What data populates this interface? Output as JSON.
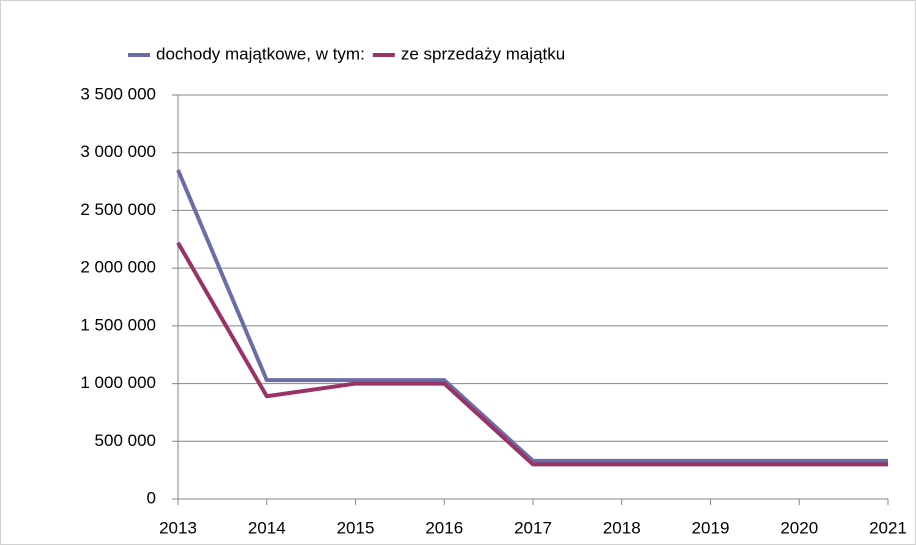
{
  "chart_data": {
    "type": "line",
    "x": [
      2013,
      2014,
      2015,
      2016,
      2017,
      2018,
      2019,
      2020,
      2021
    ],
    "xlim": [
      2013,
      2021
    ],
    "xticks": [
      2013,
      2014,
      2015,
      2016,
      2017,
      2018,
      2019,
      2020,
      2021
    ],
    "ylim": [
      0,
      3500000
    ],
    "yticks": [
      0,
      {
        "value": 500000,
        "label": "500 000"
      },
      {
        "value": 1000000,
        "label": "1 000 000"
      },
      {
        "value": 1500000,
        "label": "1 500 000"
      },
      {
        "value": 2000000,
        "label": "2 000 000"
      },
      {
        "value": 2500000,
        "label": "2 500 000"
      },
      {
        "value": 3000000,
        "label": "3 000 000"
      },
      {
        "value": 3500000,
        "label": "3 500 000"
      }
    ],
    "grid": true,
    "legend": "top",
    "series": [
      {
        "name": "dochody majątkowe, w tym:",
        "color": "#6b6ea6",
        "values": [
          2850000,
          1030000,
          1030000,
          1030000,
          330000,
          330000,
          330000,
          330000,
          330000
        ]
      },
      {
        "name": "ze sprzedaży majątku",
        "color": "#993366",
        "values": [
          2220000,
          890000,
          1000000,
          1000000,
          300000,
          300000,
          300000,
          300000,
          300000
        ]
      }
    ]
  }
}
